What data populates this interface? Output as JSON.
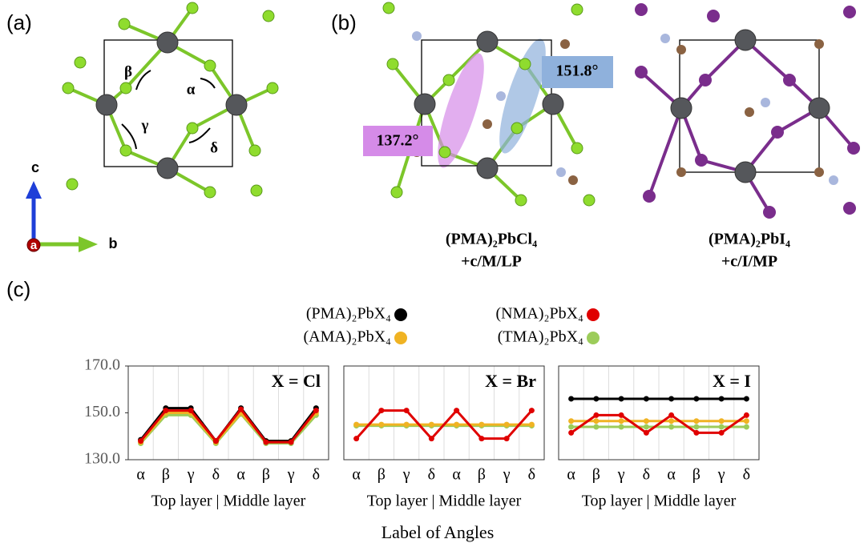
{
  "panel_labels": {
    "a": "(a)",
    "b": "(b)",
    "c": "(c)"
  },
  "structure_a": {
    "angles": {
      "beta": "β",
      "alpha": "α",
      "gamma": "γ",
      "delta": "δ"
    },
    "axes": {
      "c": "c",
      "b": "b",
      "a": "a"
    }
  },
  "structure_b": {
    "left": {
      "formula": "(PMA)₂PbCl₄",
      "config": "+c/M/LP",
      "angle_1": "137.2°",
      "angle_2": "151.8°"
    },
    "right": {
      "formula": "(PMA)₂PbI₄",
      "config": "+c/I/MP"
    }
  },
  "legend": [
    {
      "name": "(PMA)₂PbX₄",
      "color": "#000000"
    },
    {
      "name": "(NMA)₂PbX₄",
      "color": "#e00000"
    },
    {
      "name": "(AMA)₂PbX₄",
      "color": "#f0b323"
    },
    {
      "name": "(TMA)₂PbX₄",
      "color": "#9ccc5a"
    }
  ],
  "x_axis_title": "Label of Angles",
  "chart_data": [
    {
      "type": "line",
      "title": "X = Cl",
      "categories": [
        "α",
        "β",
        "γ",
        "δ",
        "α",
        "β",
        "γ",
        "δ"
      ],
      "x_label": "Top layer | Middle layer",
      "ylim": [
        130,
        170
      ],
      "yticks": [
        {
          "value": 130,
          "label": "130.0"
        },
        {
          "value": 150,
          "label": "150.0"
        },
        {
          "value": 170,
          "label": "170.0"
        }
      ],
      "series": [
        {
          "values": [
            138.5,
            152,
            152,
            138,
            152,
            138,
            138,
            152
          ]
        },
        {
          "values": [
            138,
            151,
            151,
            138,
            151.5,
            137.5,
            137.5,
            151
          ]
        },
        {
          "values": [
            137.5,
            150,
            150,
            137.5,
            150,
            138,
            138,
            150
          ]
        },
        {
          "values": [
            137,
            149,
            149,
            137,
            149.5,
            137,
            137,
            149
          ]
        }
      ]
    },
    {
      "type": "line",
      "title": "X = Br",
      "categories": [
        "α",
        "β",
        "γ",
        "δ",
        "α",
        "β",
        "γ",
        "δ"
      ],
      "x_label": "Top layer | Middle layer",
      "ylim": [
        130,
        170
      ],
      "series": [
        {
          "values": [
            null,
            null,
            null,
            null,
            null,
            null,
            null,
            null
          ]
        },
        {
          "values": [
            139,
            151,
            151,
            139,
            151,
            139,
            139,
            151
          ]
        },
        {
          "values": [
            145,
            145,
            145,
            145,
            145,
            145,
            145,
            145
          ]
        },
        {
          "values": [
            144.5,
            144.5,
            144.5,
            144.5,
            144.5,
            144.5,
            144.5,
            144.5
          ]
        }
      ]
    },
    {
      "type": "line",
      "title": "X = I",
      "categories": [
        "α",
        "β",
        "γ",
        "δ",
        "α",
        "β",
        "γ",
        "δ"
      ],
      "x_label": "Top layer | Middle layer",
      "ylim": [
        130,
        170
      ],
      "series": [
        {
          "values": [
            156,
            156,
            156,
            156,
            156,
            156,
            156,
            156
          ]
        },
        {
          "values": [
            141.5,
            149,
            149,
            141.5,
            149,
            141.5,
            141.5,
            149
          ]
        },
        {
          "values": [
            146.5,
            146.5,
            146.5,
            146.5,
            146.5,
            146.5,
            146.5,
            146.5
          ]
        },
        {
          "values": [
            144,
            144,
            144,
            144,
            144,
            144,
            144,
            144
          ]
        }
      ]
    }
  ]
}
